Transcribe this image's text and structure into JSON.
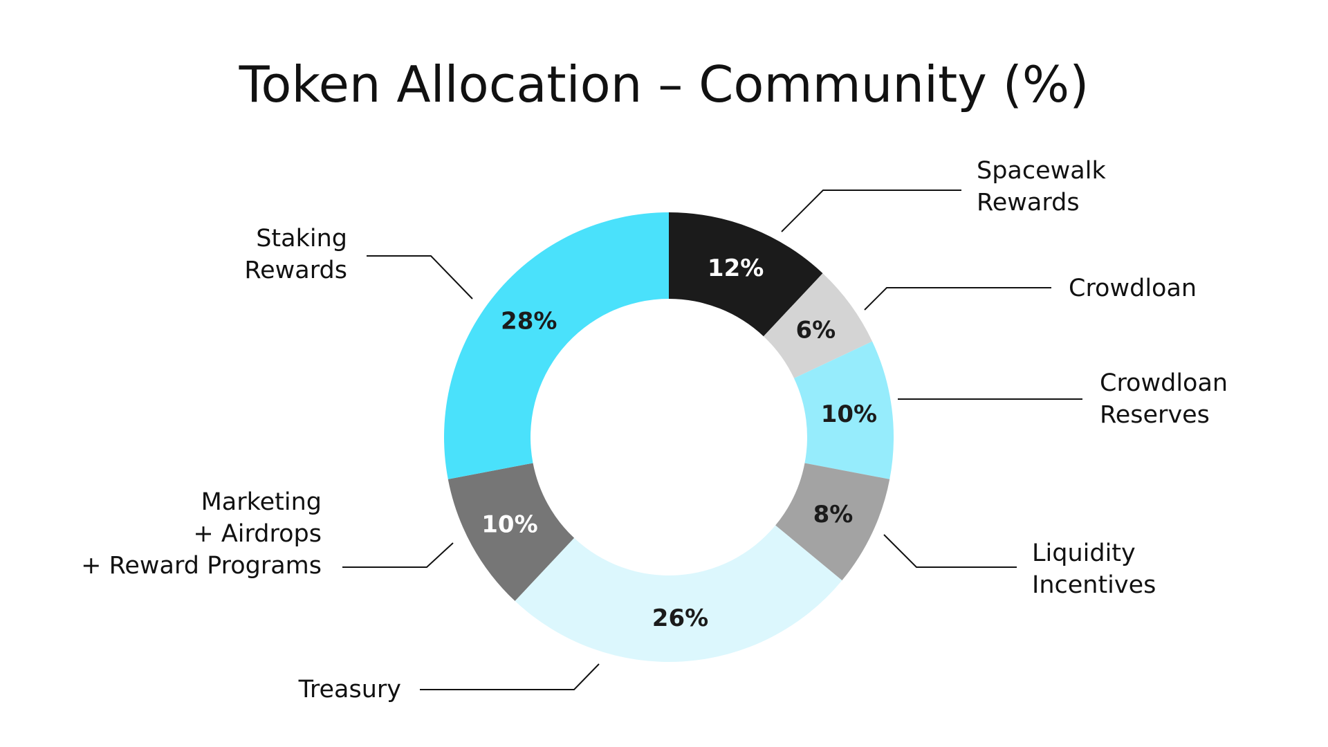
{
  "chart_data": {
    "type": "pie",
    "title": "Token Allocation – Community (%)",
    "donut": true,
    "slices": [
      {
        "label": "Spacewalk\nRewards",
        "value": 12,
        "value_label": "12%",
        "color": "#1b1b1b",
        "text_color": "#ffffff"
      },
      {
        "label": "Crowdloan",
        "value": 6,
        "value_label": "6%",
        "color": "#d4d4d4",
        "text_color": "#1b1b1b"
      },
      {
        "label": "Crowdloan\nReserves",
        "value": 10,
        "value_label": "10%",
        "color": "#96ecfc",
        "text_color": "#1b1b1b"
      },
      {
        "label": "Liquidity\nIncentives",
        "value": 8,
        "value_label": "8%",
        "color": "#a3a3a3",
        "text_color": "#1b1b1b"
      },
      {
        "label": "Treasury",
        "value": 26,
        "value_label": "26%",
        "color": "#dcf7fd",
        "text_color": "#1b1b1b"
      },
      {
        "label": "Marketing\n+ Airdrops\n+ Reward Programs",
        "value": 10,
        "value_label": "10%",
        "color": "#767676",
        "text_color": "#ffffff"
      },
      {
        "label": "Staking\nRewards",
        "value": 28,
        "value_label": "28%",
        "color": "#4ae1fb",
        "text_color": "#1b1b1b"
      }
    ]
  }
}
